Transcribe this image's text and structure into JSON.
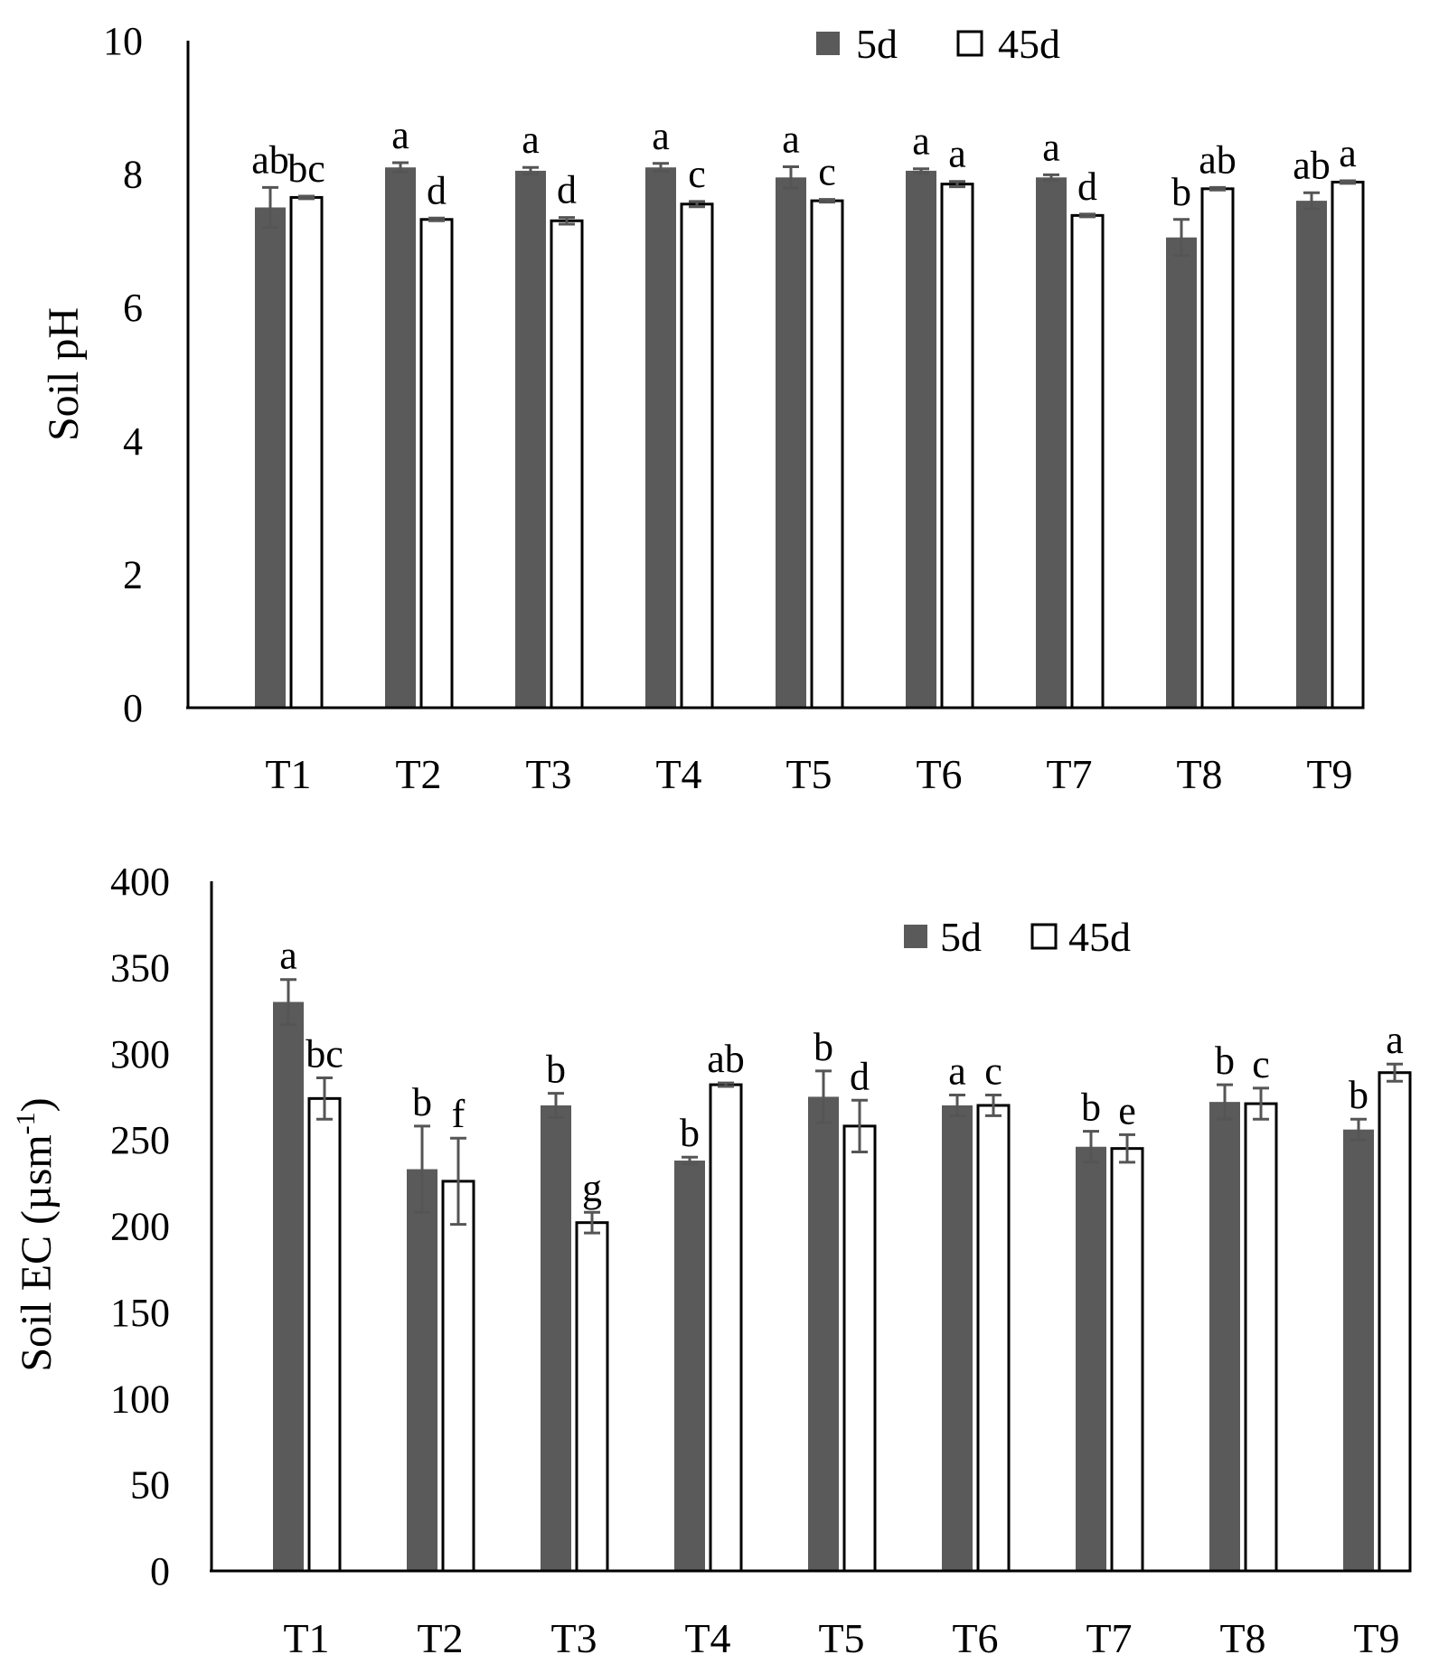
{
  "chart_data": [
    {
      "type": "bar",
      "id": "ph",
      "title": "",
      "xlabel": "",
      "ylabel": "Soil pH",
      "ylim": [
        0,
        10
      ],
      "yticks": [
        0,
        2,
        4,
        6,
        8,
        10
      ],
      "categories": [
        "T1",
        "T2",
        "T3",
        "T4",
        "T5",
        "T6",
        "T7",
        "T8",
        "T9"
      ],
      "series": [
        {
          "name": "5d",
          "color": "#5a5a5a",
          "values": [
            7.5,
            8.1,
            8.05,
            8.1,
            7.95,
            8.05,
            7.95,
            7.05,
            7.6
          ],
          "errors": [
            0.3,
            0.07,
            0.05,
            0.06,
            0.16,
            0.03,
            0.04,
            0.27,
            0.12
          ],
          "labels": [
            "ab",
            "a",
            "a",
            "a",
            "a",
            "a",
            "a",
            "b",
            "ab"
          ]
        },
        {
          "name": "45d",
          "color": "#ffffff",
          "values": [
            7.65,
            7.32,
            7.3,
            7.55,
            7.6,
            7.85,
            7.38,
            7.78,
            7.88
          ],
          "errors": [
            0.02,
            0.02,
            0.05,
            0.04,
            0.02,
            0.04,
            0.02,
            0.02,
            0.02
          ],
          "labels": [
            "bc",
            "d",
            "d",
            "c",
            "c",
            "a",
            "d",
            "ab",
            "a"
          ]
        }
      ],
      "legend": "top-right"
    },
    {
      "type": "bar",
      "id": "ec",
      "title": "",
      "xlabel": "",
      "ylabel": "Soil EC (µsm",
      "ylabel_sup": "-1",
      "ylabel_end": ")",
      "ylim": [
        0,
        400
      ],
      "yticks": [
        0,
        50,
        100,
        150,
        200,
        250,
        300,
        350,
        400
      ],
      "categories": [
        "T1",
        "T2",
        "T3",
        "T4",
        "T5",
        "T6",
        "T7",
        "T8",
        "T9"
      ],
      "series": [
        {
          "name": "5d",
          "color": "#5a5a5a",
          "values": [
            330,
            233,
            270,
            238,
            275,
            270,
            246,
            272,
            256
          ],
          "errors": [
            13,
            25,
            7,
            2,
            15,
            6,
            9,
            10,
            6
          ],
          "labels": [
            "a",
            "b",
            "b",
            "b",
            "b",
            "a",
            "b",
            "b",
            "b"
          ]
        },
        {
          "name": "45d",
          "color": "#ffffff",
          "values": [
            274,
            226,
            202,
            282,
            258,
            270,
            245,
            271,
            289
          ],
          "errors": [
            12,
            25,
            6,
            1,
            15,
            6,
            8,
            9,
            5
          ],
          "labels": [
            "bc",
            "f",
            "g",
            "ab",
            "d",
            "c",
            "e",
            "c",
            "a"
          ]
        }
      ],
      "legend": "top-right"
    }
  ]
}
